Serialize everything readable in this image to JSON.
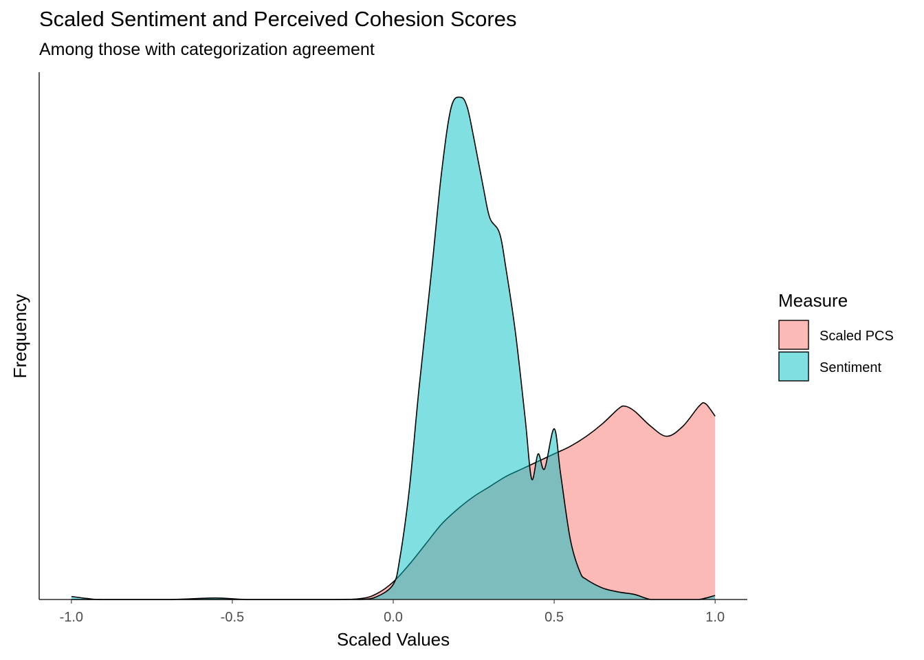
{
  "title": "Scaled Sentiment and Perceived Cohesion Scores",
  "subtitle": "Among those with categorization agreement",
  "chart_data": {
    "type": "area",
    "title": "Scaled Sentiment and Perceived Cohesion Scores",
    "subtitle": "Among those with categorization agreement",
    "xlabel": "Scaled Values",
    "ylabel": "Frequency",
    "xlim": [
      -1.1,
      1.1
    ],
    "ylim": [
      0,
      1.05
    ],
    "x_ticks": [
      -1.0,
      -0.5,
      0.0,
      0.5,
      1.0
    ],
    "x_tick_labels": [
      "-1.0",
      "-0.5",
      "0.0",
      "0.5",
      "1.0"
    ],
    "y_tick_labels": [],
    "grid": false,
    "legend": {
      "title": "Measure",
      "position": "right",
      "entries": [
        "Scaled PCS",
        "Sentiment"
      ]
    },
    "series": [
      {
        "name": "Scaled PCS",
        "color": "#F8766D",
        "x": [
          -1.0,
          -0.95,
          -0.9,
          -0.5,
          -0.2,
          -0.1,
          -0.05,
          0.0,
          0.05,
          0.1,
          0.15,
          0.2,
          0.25,
          0.3,
          0.35,
          0.4,
          0.45,
          0.5,
          0.55,
          0.6,
          0.65,
          0.7,
          0.72,
          0.75,
          0.8,
          0.85,
          0.9,
          0.95,
          0.97,
          1.0
        ],
        "y": [
          0.0,
          0.0,
          0.0,
          0.0,
          0.0,
          0.002,
          0.012,
          0.035,
          0.07,
          0.11,
          0.15,
          0.18,
          0.205,
          0.225,
          0.245,
          0.26,
          0.275,
          0.29,
          0.305,
          0.325,
          0.35,
          0.38,
          0.385,
          0.375,
          0.345,
          0.325,
          0.345,
          0.385,
          0.39,
          0.365
        ]
      },
      {
        "name": "Sentiment",
        "color": "#00BFC4",
        "x": [
          -1.0,
          -0.95,
          -0.9,
          -0.7,
          -0.55,
          -0.45,
          -0.2,
          -0.1,
          -0.05,
          0.0,
          0.02,
          0.05,
          0.08,
          0.12,
          0.15,
          0.18,
          0.21,
          0.23,
          0.25,
          0.28,
          0.3,
          0.33,
          0.35,
          0.38,
          0.41,
          0.43,
          0.45,
          0.47,
          0.5,
          0.52,
          0.55,
          0.58,
          0.6,
          0.65,
          0.7,
          0.75,
          0.8,
          0.85,
          0.9,
          0.95,
          1.0
        ],
        "y": [
          0.006,
          0.002,
          0.0,
          0.0,
          0.003,
          0.0,
          0.0,
          0.0,
          0.006,
          0.03,
          0.08,
          0.22,
          0.42,
          0.66,
          0.85,
          0.98,
          1.0,
          0.98,
          0.92,
          0.82,
          0.76,
          0.73,
          0.66,
          0.53,
          0.36,
          0.24,
          0.29,
          0.26,
          0.34,
          0.25,
          0.12,
          0.055,
          0.04,
          0.023,
          0.015,
          0.01,
          0.0,
          0.0,
          0.0,
          0.0,
          0.008
        ]
      }
    ]
  }
}
